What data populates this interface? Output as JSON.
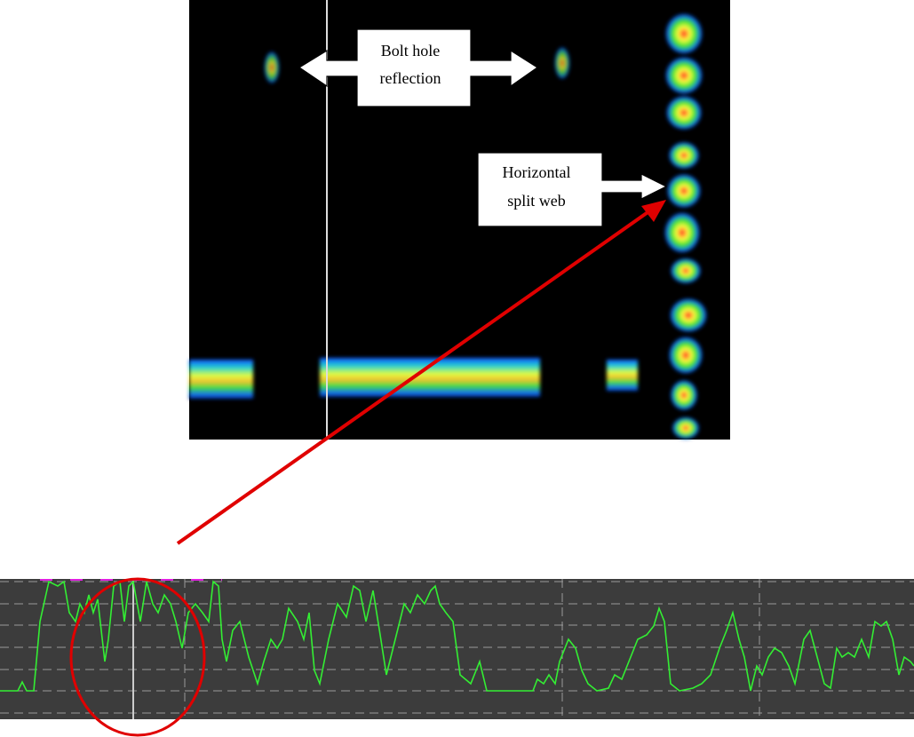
{
  "annotations": [
    {
      "lines": [
        "Bolt hole",
        "reflection"
      ]
    },
    {
      "lines": [
        "Horizontal",
        "split web"
      ]
    }
  ]
}
